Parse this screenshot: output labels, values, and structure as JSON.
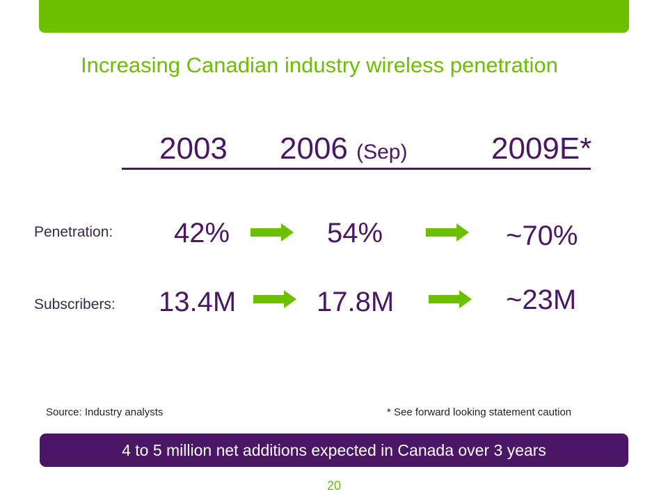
{
  "colors": {
    "green": "#6cc000",
    "purple": "#4b1665",
    "white": "#ffffff"
  },
  "title": "Increasing Canadian industry wireless penetration",
  "years": [
    {
      "main": "2003",
      "sub": ""
    },
    {
      "main": "2006",
      "sub": "(Sep)"
    },
    {
      "main": "2009E*",
      "sub": ""
    }
  ],
  "rows": {
    "penetration": {
      "label": "Penetration:",
      "values": [
        "42%",
        "54%",
        "~70%"
      ]
    },
    "subscribers": {
      "label": "Subscribers:",
      "values": [
        "13.4M",
        "17.8M",
        "~23M"
      ]
    }
  },
  "arrow_icon": "right-arrow-icon",
  "source": "Source: Industry analysts",
  "caution": "* See forward looking statement caution",
  "banner": "4 to 5 million net additions expected in Canada over 3 years",
  "page_number": "20"
}
